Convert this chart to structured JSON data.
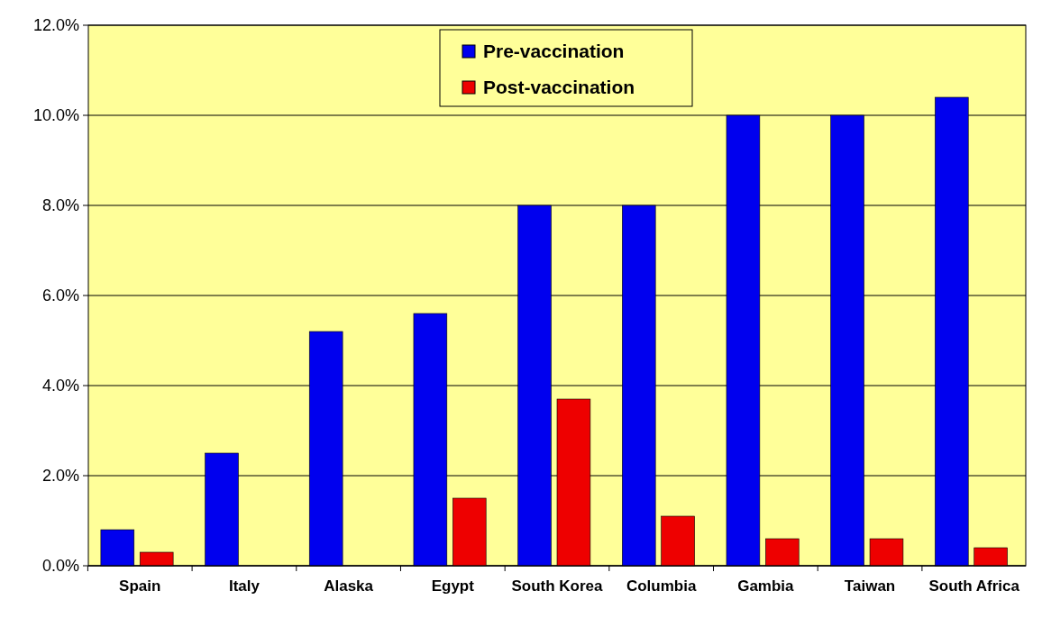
{
  "chart_data": {
    "type": "bar",
    "categories": [
      "Spain",
      "Italy",
      "Alaska",
      "Egypt",
      "South Korea",
      "Columbia",
      "Gambia",
      "Taiwan",
      "South Africa"
    ],
    "series": [
      {
        "name": "Pre-vaccination",
        "color": "#0000ee",
        "values": [
          0.8,
          2.5,
          5.2,
          5.6,
          8.0,
          8.0,
          10.0,
          10.0,
          10.4
        ]
      },
      {
        "name": "Post-vaccination",
        "color": "#ee0000",
        "values": [
          0.3,
          0,
          0,
          1.5,
          3.7,
          1.1,
          0.6,
          0.6,
          0.4
        ]
      }
    ],
    "ylim": [
      0,
      12
    ],
    "yticks": [
      {
        "value": 0,
        "label": "0.0%"
      },
      {
        "value": 2,
        "label": "2.0%"
      },
      {
        "value": 4,
        "label": "4.0%"
      },
      {
        "value": 6,
        "label": "6.0%"
      },
      {
        "value": 8,
        "label": "8.0%"
      },
      {
        "value": 10,
        "label": "10.0%"
      },
      {
        "value": 12,
        "label": "12.0%"
      }
    ],
    "grid": "y",
    "legend": "top"
  }
}
